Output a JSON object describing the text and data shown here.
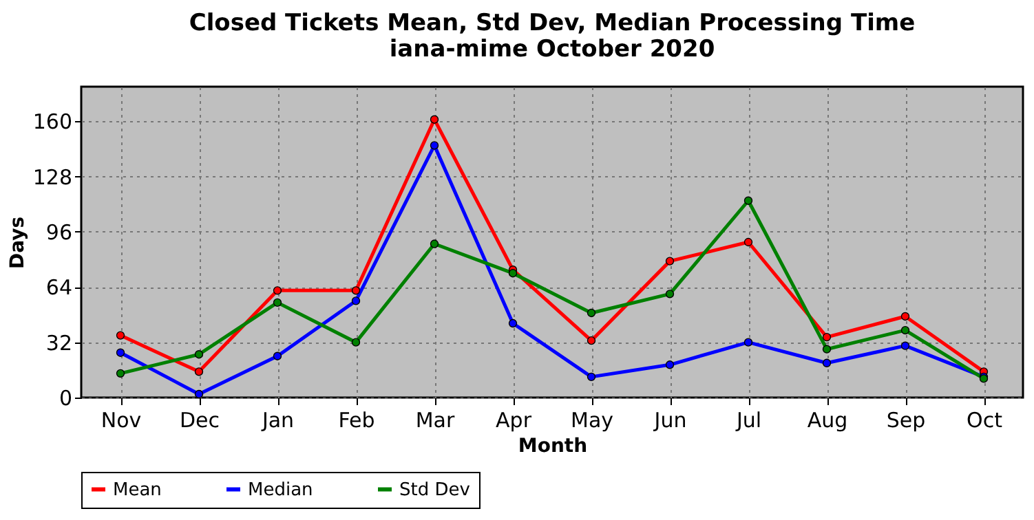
{
  "chart_data": {
    "type": "line",
    "title": "Closed Tickets Mean, Std Dev, Median Processing Time",
    "subtitle": "iana-mime October 2020",
    "xlabel": "Month",
    "ylabel": "Days",
    "categories": [
      "Nov",
      "Dec",
      "Jan",
      "Feb",
      "Mar",
      "Apr",
      "May",
      "Jun",
      "Jul",
      "Aug",
      "Sep",
      "Oct"
    ],
    "series": [
      {
        "name": "Mean",
        "color": "#ff0000",
        "values": [
          36,
          15,
          62,
          62,
          161,
          74,
          33,
          79,
          90,
          35,
          47,
          15
        ]
      },
      {
        "name": "Median",
        "color": "#0000ff",
        "values": [
          26,
          2,
          24,
          56,
          146,
          43,
          12,
          19,
          32,
          20,
          30,
          12
        ]
      },
      {
        "name": "Std Dev",
        "color": "#008000",
        "values": [
          14,
          25,
          55,
          32,
          89,
          72,
          49,
          60,
          114,
          28,
          39,
          11
        ]
      }
    ],
    "ylim": [
      0,
      180
    ],
    "yticks": [
      0,
      32,
      64,
      96,
      128,
      160
    ],
    "grid": true,
    "legend": "bottom",
    "marker": "circle",
    "line_style": "solid"
  }
}
